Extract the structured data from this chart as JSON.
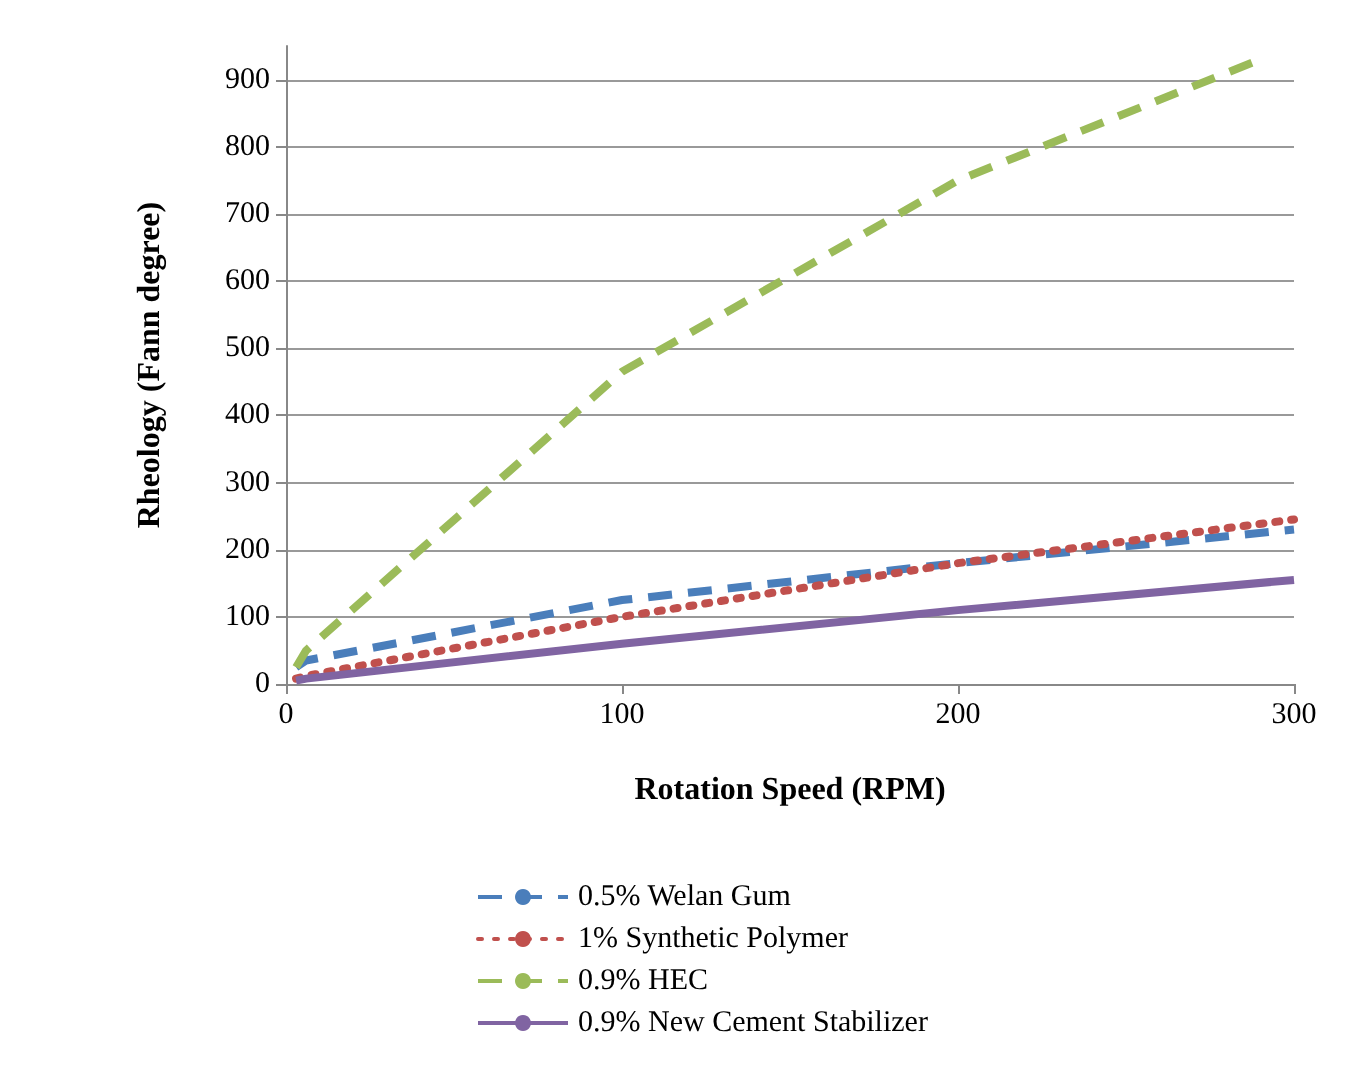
{
  "chart_data": {
    "type": "line",
    "xlabel": "Rotation Speed (RPM)",
    "ylabel": "Rheology (Fann degree)",
    "x": [
      3,
      6,
      100,
      200,
      300
    ],
    "xlim": [
      0,
      300
    ],
    "xticks": [
      0,
      100,
      200,
      300
    ],
    "ylim": [
      0,
      950
    ],
    "yticks": [
      0,
      100,
      200,
      300,
      400,
      500,
      600,
      700,
      800,
      900
    ],
    "grid": "y",
    "legend": "bottom",
    "marker": "none",
    "series": [
      {
        "name": "0.5% Welan Gum",
        "color": "#4a7ebb",
        "line_style": "dashed",
        "values": [
          25,
          35,
          125,
          180,
          230
        ]
      },
      {
        "name": "1% Synthetic Polymer",
        "color": "#c0504d",
        "line_style": "dotted",
        "values": [
          8,
          12,
          100,
          180,
          245
        ]
      },
      {
        "name": "0.9% HEC",
        "color": "#9bbb59",
        "line_style": "dashed",
        "x": [
          3,
          6,
          100,
          200,
          290
        ],
        "values": [
          25,
          50,
          465,
          750,
          930
        ]
      },
      {
        "name": "0.9% New Cement Stabilizer",
        "color": "#8064a2",
        "line_style": "solid",
        "values": [
          5,
          8,
          60,
          110,
          155
        ]
      }
    ]
  }
}
